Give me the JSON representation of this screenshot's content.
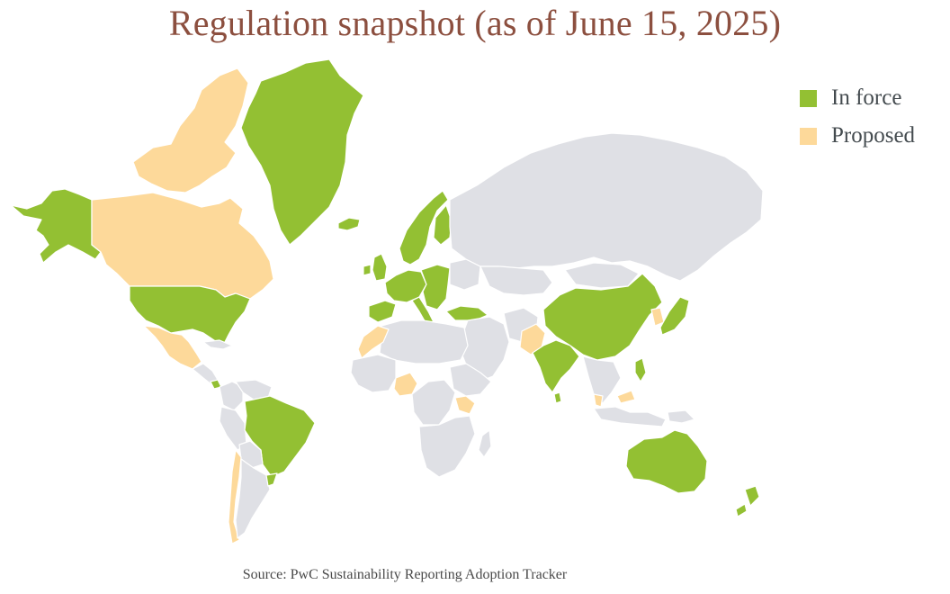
{
  "title": "Regulation snapshot (as of June 15, 2025)",
  "legend": {
    "items": [
      {
        "key": "in_force",
        "label": "In force",
        "color": "#93c033"
      },
      {
        "key": "proposed",
        "label": "Proposed",
        "color": "#fdd99a"
      }
    ]
  },
  "colors": {
    "none": "#dfe0e5",
    "in_force": "#93c033",
    "proposed": "#fdd99a",
    "border": "#ffffff"
  },
  "source": "Source: PwC Sustainability Reporting Adoption Tracker",
  "regions": [
    {
      "id": "alaska",
      "status": "in_force"
    },
    {
      "id": "canada",
      "status": "proposed"
    },
    {
      "id": "canada-arctic",
      "status": "proposed"
    },
    {
      "id": "greenland",
      "status": "in_force"
    },
    {
      "id": "iceland",
      "status": "in_force"
    },
    {
      "id": "usa",
      "status": "in_force"
    },
    {
      "id": "mexico",
      "status": "proposed"
    },
    {
      "id": "central-america",
      "status": "none"
    },
    {
      "id": "cuba",
      "status": "none"
    },
    {
      "id": "costa-rica",
      "status": "in_force"
    },
    {
      "id": "colombia",
      "status": "none"
    },
    {
      "id": "venezuela",
      "status": "none"
    },
    {
      "id": "peru",
      "status": "none"
    },
    {
      "id": "brazil",
      "status": "in_force"
    },
    {
      "id": "bolivia",
      "status": "none"
    },
    {
      "id": "chile",
      "status": "proposed"
    },
    {
      "id": "argentina",
      "status": "none"
    },
    {
      "id": "uruguay",
      "status": "in_force"
    },
    {
      "id": "uk",
      "status": "in_force"
    },
    {
      "id": "ireland",
      "status": "in_force"
    },
    {
      "id": "scandinavia",
      "status": "in_force"
    },
    {
      "id": "finland",
      "status": "in_force"
    },
    {
      "id": "europe-west",
      "status": "in_force"
    },
    {
      "id": "iberia",
      "status": "in_force"
    },
    {
      "id": "italy",
      "status": "in_force"
    },
    {
      "id": "europe-east",
      "status": "in_force"
    },
    {
      "id": "belarus-ukraine",
      "status": "none"
    },
    {
      "id": "turkey",
      "status": "in_force"
    },
    {
      "id": "russia",
      "status": "none"
    },
    {
      "id": "kazakhstan",
      "status": "none"
    },
    {
      "id": "middle-east",
      "status": "none"
    },
    {
      "id": "iran",
      "status": "none"
    },
    {
      "id": "pakistan",
      "status": "proposed"
    },
    {
      "id": "india",
      "status": "in_force"
    },
    {
      "id": "sri-lanka",
      "status": "in_force"
    },
    {
      "id": "china",
      "status": "in_force"
    },
    {
      "id": "mongolia",
      "status": "none"
    },
    {
      "id": "korea",
      "status": "proposed"
    },
    {
      "id": "japan",
      "status": "in_force"
    },
    {
      "id": "southeast-asia",
      "status": "none"
    },
    {
      "id": "philippines",
      "status": "in_force"
    },
    {
      "id": "malaysia",
      "status": "proposed"
    },
    {
      "id": "indonesia",
      "status": "none"
    },
    {
      "id": "png",
      "status": "none"
    },
    {
      "id": "north-africa",
      "status": "none"
    },
    {
      "id": "morocco",
      "status": "proposed"
    },
    {
      "id": "west-africa",
      "status": "none"
    },
    {
      "id": "nigeria",
      "status": "proposed"
    },
    {
      "id": "central-africa",
      "status": "none"
    },
    {
      "id": "east-africa",
      "status": "none"
    },
    {
      "id": "kenya",
      "status": "proposed"
    },
    {
      "id": "southern-africa",
      "status": "none"
    },
    {
      "id": "madagascar",
      "status": "none"
    },
    {
      "id": "australia",
      "status": "in_force"
    },
    {
      "id": "new-zealand",
      "status": "in_force"
    }
  ]
}
